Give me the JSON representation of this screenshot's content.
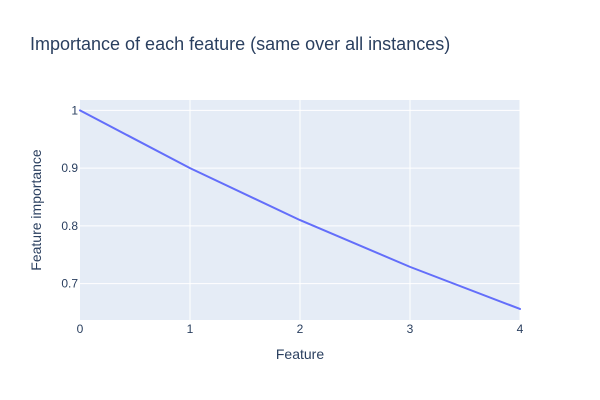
{
  "chart_data": {
    "type": "line",
    "title": "Importance of each feature (same over all instances)",
    "xlabel": "Feature",
    "ylabel": "Feature importance",
    "x": [
      0,
      1,
      2,
      3,
      4
    ],
    "series": [
      {
        "values": [
          1.0,
          0.9,
          0.81,
          0.729,
          0.6561
        ],
        "color": "#636efa"
      }
    ],
    "xlim": [
      0,
      4
    ],
    "ylim": [
      0.637,
      1.018
    ],
    "xticks": [
      0,
      1,
      2,
      3,
      4
    ],
    "yticks": [
      0.7,
      0.8,
      0.9,
      1
    ],
    "xtick_labels": [
      "0",
      "1",
      "2",
      "3",
      "4"
    ],
    "ytick_labels": [
      "0.7",
      "0.8",
      "0.9",
      "1"
    ],
    "grid": true,
    "legend": "none",
    "colors": {
      "plot_background": "#e5ecf6",
      "grid": "#ffffff",
      "text": "#2a3f5f"
    }
  }
}
